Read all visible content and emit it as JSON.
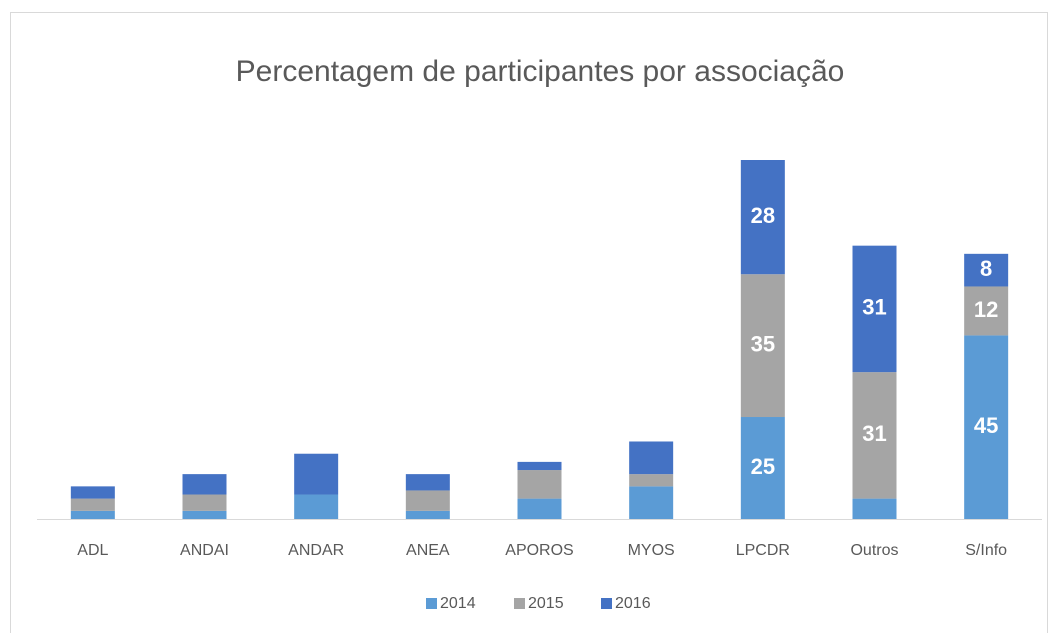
{
  "chart_data": {
    "type": "bar",
    "stacked": true,
    "title": "Percentagem de participantes por associação",
    "categories": [
      "ADL",
      "ANDAI",
      "ANDAR",
      "ANEA",
      "APOROS",
      "MYOS",
      "LPCDR",
      "Outros",
      "S/Info"
    ],
    "series": [
      {
        "name": "2014",
        "color": "#5b9bd5",
        "values": [
          2,
          2,
          6,
          2,
          5,
          8,
          25,
          5,
          45
        ],
        "value_labels": [
          null,
          null,
          null,
          null,
          null,
          null,
          "25",
          null,
          "45"
        ]
      },
      {
        "name": "2015",
        "color": "#a5a5a5",
        "values": [
          3,
          4,
          0,
          5,
          7,
          3,
          35,
          31,
          12
        ],
        "value_labels": [
          null,
          null,
          null,
          null,
          null,
          null,
          "35",
          "31",
          "12"
        ]
      },
      {
        "name": "2016",
        "color": "#4472c4",
        "values": [
          3,
          5,
          10,
          4,
          2,
          8,
          28,
          31,
          8
        ],
        "value_labels": [
          null,
          null,
          null,
          null,
          null,
          null,
          "28",
          "31",
          "8"
        ]
      }
    ],
    "legend": "bottom"
  }
}
